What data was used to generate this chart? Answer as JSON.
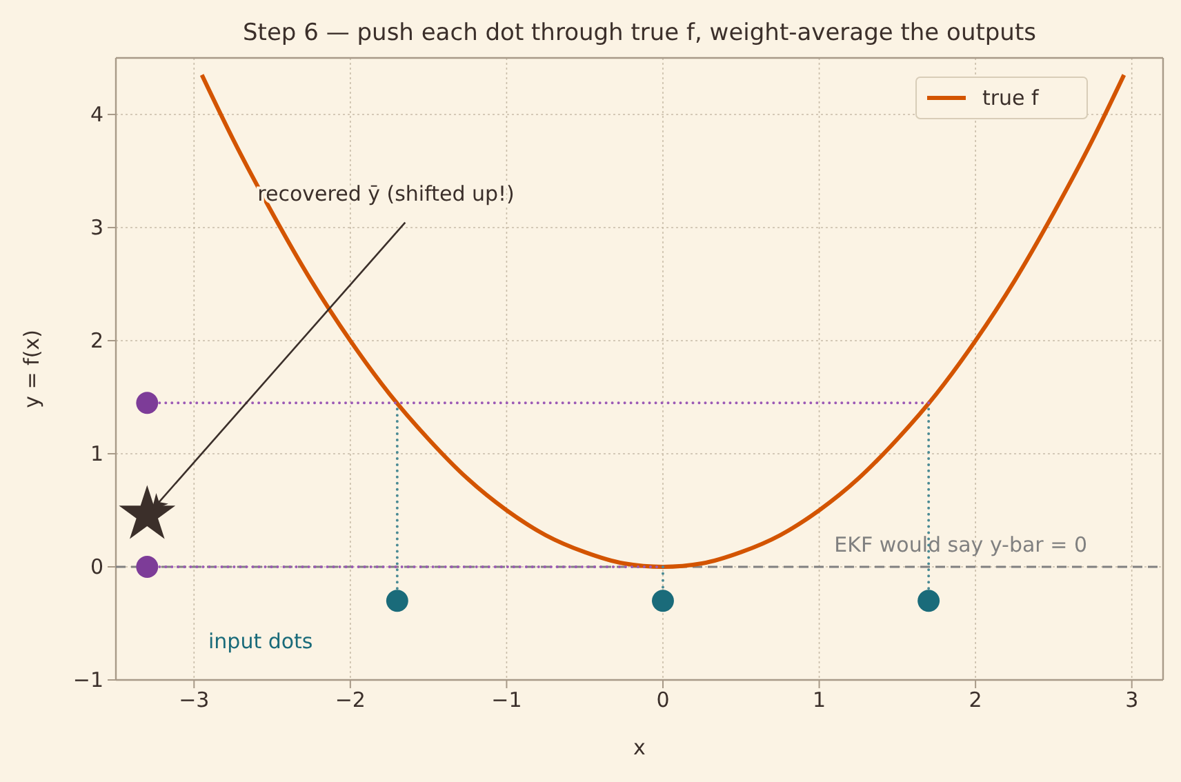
{
  "chart_data": {
    "type": "line",
    "title": "Step 6 — push each dot through true f, weight-average the outputs",
    "xlabel": "x",
    "ylabel": "y = f(x)",
    "xlim": [
      -3.5,
      3.2
    ],
    "ylim": [
      -1,
      4.5
    ],
    "xticks": [
      -3,
      -2,
      -1,
      0,
      1,
      2,
      3
    ],
    "yticks": [
      -1,
      0,
      1,
      2,
      3,
      4
    ],
    "grid": true,
    "legend": "top right",
    "series": [
      {
        "name": "true f",
        "color": "#d35400",
        "line_style": "solid",
        "x": [
          -2.95,
          -2.75,
          -2.5,
          -2.25,
          -2,
          -1.75,
          -1.5,
          -1.25,
          -1,
          -0.75,
          -0.5,
          -0.25,
          0,
          0.25,
          0.5,
          0.75,
          1,
          1.25,
          1.5,
          1.75,
          2,
          2.25,
          2.5,
          2.75,
          2.95
        ],
        "values": [
          4.35,
          3.78,
          3.13,
          2.53,
          2,
          1.53,
          1.13,
          0.78,
          0.5,
          0.28,
          0.13,
          0.03,
          0,
          0.03,
          0.13,
          0.28,
          0.5,
          0.78,
          1.13,
          1.53,
          2,
          2.53,
          3.13,
          3.78,
          4.35
        ]
      },
      {
        "type": "line",
        "color": "#9b59b6",
        "line_style": "dotted",
        "x": [
          -3.3,
          1.7
        ],
        "values": [
          1.45,
          1.45
        ]
      },
      {
        "type": "line",
        "color": "#9b59b6",
        "line_style": "dotted",
        "x": [
          -3.3,
          0
        ],
        "values": [
          0,
          0
        ]
      },
      {
        "type": "line",
        "color": "#4a8a94",
        "line_style": "dotted",
        "x": [
          -1.7,
          -1.7
        ],
        "values": [
          -0.3,
          1.45
        ]
      },
      {
        "type": "line",
        "color": "#4a8a94",
        "line_style": "dotted",
        "x": [
          0,
          0
        ],
        "values": [
          -0.3,
          0
        ]
      },
      {
        "type": "line",
        "color": "#4a8a94",
        "line_style": "dotted",
        "x": [
          1.7,
          1.7
        ],
        "values": [
          -0.3,
          1.45
        ]
      },
      {
        "type": "scatter",
        "color": "#1a6b7a",
        "marker": "circle",
        "x": [
          -1.7,
          0,
          1.7
        ],
        "values": [
          -0.3,
          -0.3,
          -0.3
        ]
      },
      {
        "type": "scatter",
        "color": "#7d3c98",
        "marker": "circle",
        "x": [
          -3.3,
          -3.3
        ],
        "values": [
          1.45,
          0
        ]
      },
      {
        "type": "scatter",
        "color": "#3b2f2a",
        "marker": "star",
        "x": [
          -3.3
        ],
        "values": [
          0.46
        ]
      }
    ],
    "ref_lines": [
      {
        "axis": "y",
        "value": 0,
        "label": "EKF would say y-bar = 0",
        "color": "#808080",
        "line_style": "dashed"
      }
    ],
    "annotations": [
      {
        "text": "recovered ȳ (shifted up!)",
        "x": -3.3,
        "y": 0.46
      },
      "input dots"
    ]
  }
}
